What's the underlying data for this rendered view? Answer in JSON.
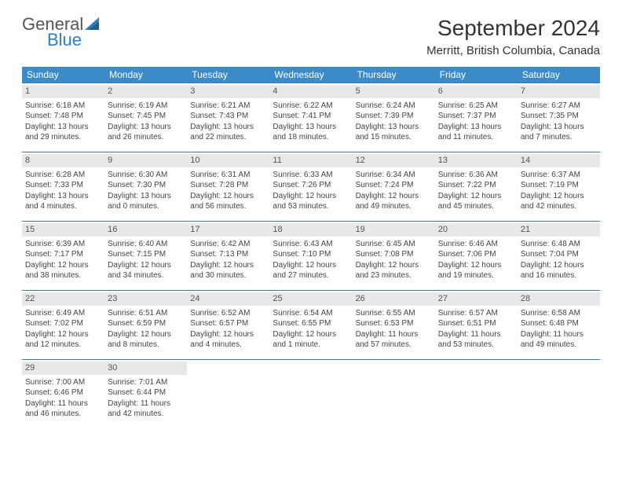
{
  "brand": {
    "part1": "General",
    "part2": "Blue"
  },
  "title": "September 2024",
  "location": "Merritt, British Columbia, Canada",
  "colors": {
    "header_bg": "#3b8bc8",
    "header_fg": "#ffffff",
    "row_border": "#3b7aa8",
    "daynum_bg": "#e8e8e8",
    "brand_gray": "#555555",
    "brand_blue": "#2f7ec0"
  },
  "calendar": {
    "type": "table",
    "columns": [
      "Sunday",
      "Monday",
      "Tuesday",
      "Wednesday",
      "Thursday",
      "Friday",
      "Saturday"
    ],
    "first_weekday_index": 0,
    "days": [
      {
        "n": 1,
        "sunrise": "6:18 AM",
        "sunset": "7:48 PM",
        "daylight": "13 hours and 29 minutes."
      },
      {
        "n": 2,
        "sunrise": "6:19 AM",
        "sunset": "7:45 PM",
        "daylight": "13 hours and 26 minutes."
      },
      {
        "n": 3,
        "sunrise": "6:21 AM",
        "sunset": "7:43 PM",
        "daylight": "13 hours and 22 minutes."
      },
      {
        "n": 4,
        "sunrise": "6:22 AM",
        "sunset": "7:41 PM",
        "daylight": "13 hours and 18 minutes."
      },
      {
        "n": 5,
        "sunrise": "6:24 AM",
        "sunset": "7:39 PM",
        "daylight": "13 hours and 15 minutes."
      },
      {
        "n": 6,
        "sunrise": "6:25 AM",
        "sunset": "7:37 PM",
        "daylight": "13 hours and 11 minutes."
      },
      {
        "n": 7,
        "sunrise": "6:27 AM",
        "sunset": "7:35 PM",
        "daylight": "13 hours and 7 minutes."
      },
      {
        "n": 8,
        "sunrise": "6:28 AM",
        "sunset": "7:33 PM",
        "daylight": "13 hours and 4 minutes."
      },
      {
        "n": 9,
        "sunrise": "6:30 AM",
        "sunset": "7:30 PM",
        "daylight": "13 hours and 0 minutes."
      },
      {
        "n": 10,
        "sunrise": "6:31 AM",
        "sunset": "7:28 PM",
        "daylight": "12 hours and 56 minutes."
      },
      {
        "n": 11,
        "sunrise": "6:33 AM",
        "sunset": "7:26 PM",
        "daylight": "12 hours and 53 minutes."
      },
      {
        "n": 12,
        "sunrise": "6:34 AM",
        "sunset": "7:24 PM",
        "daylight": "12 hours and 49 minutes."
      },
      {
        "n": 13,
        "sunrise": "6:36 AM",
        "sunset": "7:22 PM",
        "daylight": "12 hours and 45 minutes."
      },
      {
        "n": 14,
        "sunrise": "6:37 AM",
        "sunset": "7:19 PM",
        "daylight": "12 hours and 42 minutes."
      },
      {
        "n": 15,
        "sunrise": "6:39 AM",
        "sunset": "7:17 PM",
        "daylight": "12 hours and 38 minutes."
      },
      {
        "n": 16,
        "sunrise": "6:40 AM",
        "sunset": "7:15 PM",
        "daylight": "12 hours and 34 minutes."
      },
      {
        "n": 17,
        "sunrise": "6:42 AM",
        "sunset": "7:13 PM",
        "daylight": "12 hours and 30 minutes."
      },
      {
        "n": 18,
        "sunrise": "6:43 AM",
        "sunset": "7:10 PM",
        "daylight": "12 hours and 27 minutes."
      },
      {
        "n": 19,
        "sunrise": "6:45 AM",
        "sunset": "7:08 PM",
        "daylight": "12 hours and 23 minutes."
      },
      {
        "n": 20,
        "sunrise": "6:46 AM",
        "sunset": "7:06 PM",
        "daylight": "12 hours and 19 minutes."
      },
      {
        "n": 21,
        "sunrise": "6:48 AM",
        "sunset": "7:04 PM",
        "daylight": "12 hours and 16 minutes."
      },
      {
        "n": 22,
        "sunrise": "6:49 AM",
        "sunset": "7:02 PM",
        "daylight": "12 hours and 12 minutes."
      },
      {
        "n": 23,
        "sunrise": "6:51 AM",
        "sunset": "6:59 PM",
        "daylight": "12 hours and 8 minutes."
      },
      {
        "n": 24,
        "sunrise": "6:52 AM",
        "sunset": "6:57 PM",
        "daylight": "12 hours and 4 minutes."
      },
      {
        "n": 25,
        "sunrise": "6:54 AM",
        "sunset": "6:55 PM",
        "daylight": "12 hours and 1 minute."
      },
      {
        "n": 26,
        "sunrise": "6:55 AM",
        "sunset": "6:53 PM",
        "daylight": "11 hours and 57 minutes."
      },
      {
        "n": 27,
        "sunrise": "6:57 AM",
        "sunset": "6:51 PM",
        "daylight": "11 hours and 53 minutes."
      },
      {
        "n": 28,
        "sunrise": "6:58 AM",
        "sunset": "6:48 PM",
        "daylight": "11 hours and 49 minutes."
      },
      {
        "n": 29,
        "sunrise": "7:00 AM",
        "sunset": "6:46 PM",
        "daylight": "11 hours and 46 minutes."
      },
      {
        "n": 30,
        "sunrise": "7:01 AM",
        "sunset": "6:44 PM",
        "daylight": "11 hours and 42 minutes."
      }
    ],
    "labels": {
      "sunrise": "Sunrise:",
      "sunset": "Sunset:",
      "daylight": "Daylight:"
    }
  }
}
